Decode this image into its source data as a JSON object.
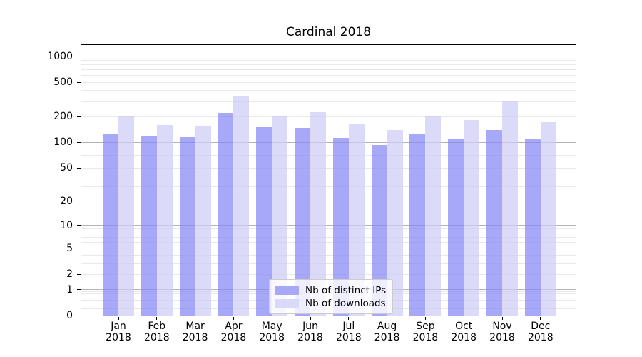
{
  "chart_data": {
    "type": "bar",
    "title": "Cardinal 2018",
    "xlabel": "",
    "ylabel": "",
    "yscale": "log1p",
    "ylim": [
      0,
      1352
    ],
    "grid": true,
    "legend_position": "lower center",
    "yticks": [
      0,
      1,
      2,
      5,
      10,
      20,
      50,
      100,
      200,
      500,
      1000
    ],
    "major_gridlines": [
      1,
      10,
      100,
      1000
    ],
    "minor_gridlines": [
      0.2,
      0.3,
      0.4,
      0.5,
      0.6,
      0.7,
      0.8,
      0.9,
      2,
      3,
      4,
      5,
      6,
      7,
      8,
      9,
      20,
      30,
      40,
      50,
      60,
      70,
      80,
      90,
      200,
      300,
      400,
      500,
      600,
      700,
      800,
      900
    ],
    "categories": [
      "Jan 2018",
      "Feb 2018",
      "Mar 2018",
      "Apr 2018",
      "May 2018",
      "Jun 2018",
      "Jul 2018",
      "Aug 2018",
      "Sep 2018",
      "Oct 2018",
      "Nov 2018",
      "Dec 2018"
    ],
    "series": [
      {
        "name": "Nb of distinct IPs",
        "color": "rgba(134,134,246,0.72)",
        "legend_color": "#a8a8f8",
        "values": [
          124,
          118,
          115,
          223,
          150,
          148,
          113,
          93,
          125,
          112,
          140,
          111
        ]
      },
      {
        "name": "Nb of downloads",
        "color": "rgba(205,205,247,0.72)",
        "legend_color": "#d9d9f8",
        "values": [
          203,
          160,
          153,
          345,
          203,
          227,
          164,
          141,
          200,
          184,
          305,
          174
        ]
      }
    ]
  },
  "colors": {
    "background": "#ffffff",
    "axis": "#000000",
    "major_gridline": "#b3b3b3",
    "minor_gridline": "#e9e9e9"
  }
}
